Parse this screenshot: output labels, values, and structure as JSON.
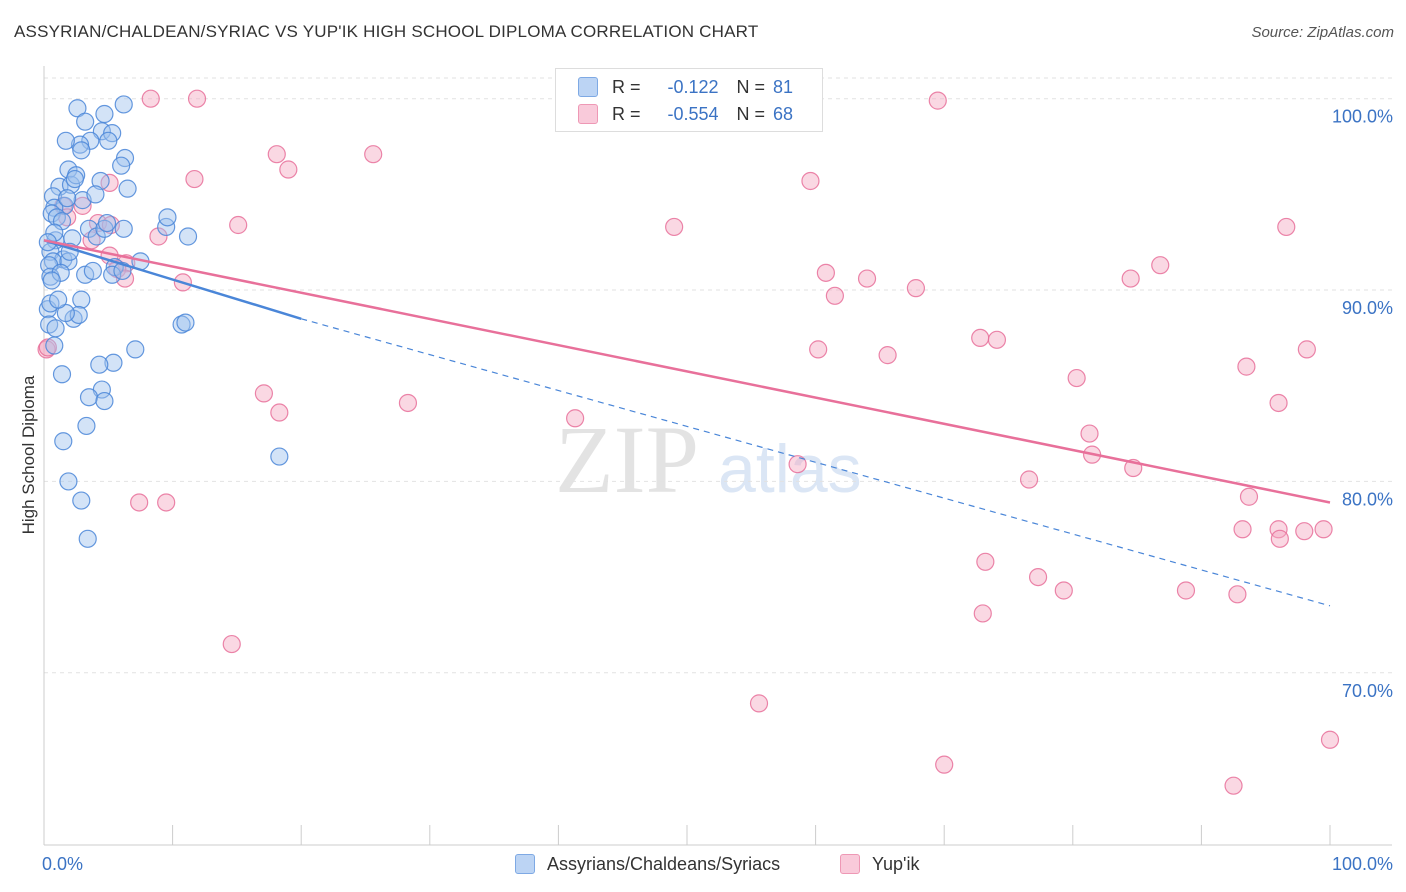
{
  "title": "ASSYRIAN/CHALDEAN/SYRIAC VS YUP'IK HIGH SCHOOL DIPLOMA CORRELATION CHART",
  "source": "Source: ZipAtlas.com",
  "watermark": {
    "zip": "ZIP",
    "atlas": "atlas"
  },
  "legend": {
    "rows": [
      {
        "r_label": "R =",
        "r_value": "-0.122",
        "n_label": "N =",
        "n_value": "81",
        "color": "#9dc0ee"
      },
      {
        "r_label": "R =",
        "r_value": "-0.554",
        "n_label": "N =",
        "n_value": "68",
        "color": "#f4a9c2"
      }
    ]
  },
  "bottom_legend": [
    {
      "label": "Assyrians/Chaldeans/Syriacs",
      "color": "#9dc0ee"
    },
    {
      "label": "Yup'ik",
      "color": "#f4a9c2"
    }
  ],
  "chart_data": {
    "type": "scatter",
    "title": "ASSYRIAN/CHALDEAN/SYRIAC VS YUP'IK HIGH SCHOOL DIPLOMA CORRELATION CHART",
    "xlabel": "",
    "ylabel": "High School Diploma",
    "xlim": [
      0,
      100
    ],
    "ylim": [
      61,
      101.5
    ],
    "x_tick_labels": [
      "0.0%",
      "100.0%"
    ],
    "y_ticks": [
      70,
      80,
      90,
      100
    ],
    "y_tick_labels": [
      "70.0%",
      "80.0%",
      "90.0%",
      "100.0%"
    ],
    "grid": true,
    "series": [
      {
        "name": "Assyrians/Chaldeans/Syriacs",
        "color": "#4a86d8",
        "fill": "#9dc0ee",
        "points": [
          [
            2.6,
            99.5
          ],
          [
            4.7,
            99.2
          ],
          [
            4.5,
            98.3
          ],
          [
            6.2,
            99.7
          ],
          [
            3.6,
            97.8
          ],
          [
            2.8,
            97.6
          ],
          [
            5.3,
            98.2
          ],
          [
            1.7,
            97.8
          ],
          [
            2.9,
            97.3
          ],
          [
            6.3,
            96.9
          ],
          [
            1.9,
            96.3
          ],
          [
            4.4,
            95.7
          ],
          [
            1.2,
            95.4
          ],
          [
            2.1,
            95.5
          ],
          [
            6.5,
            95.3
          ],
          [
            0.7,
            94.9
          ],
          [
            1.6,
            94.4
          ],
          [
            0.8,
            94.3
          ],
          [
            0.6,
            94.0
          ],
          [
            1.0,
            93.8
          ],
          [
            1.4,
            93.6
          ],
          [
            3.5,
            93.2
          ],
          [
            4.1,
            92.8
          ],
          [
            0.9,
            92.6
          ],
          [
            2.2,
            92.7
          ],
          [
            9.5,
            93.3
          ],
          [
            11.2,
            92.8
          ],
          [
            4.7,
            93.2
          ],
          [
            0.5,
            92.0
          ],
          [
            6.2,
            93.2
          ],
          [
            9.6,
            93.8
          ],
          [
            1.5,
            91.6
          ],
          [
            0.7,
            91.5
          ],
          [
            1.9,
            91.5
          ],
          [
            0.4,
            91.3
          ],
          [
            5.5,
            91.2
          ],
          [
            3.2,
            90.8
          ],
          [
            0.5,
            90.7
          ],
          [
            1.3,
            90.9
          ],
          [
            5.3,
            90.8
          ],
          [
            6.1,
            91.0
          ],
          [
            2.9,
            89.5
          ],
          [
            0.3,
            89.0
          ],
          [
            0.5,
            89.3
          ],
          [
            2.3,
            88.5
          ],
          [
            0.4,
            88.2
          ],
          [
            0.9,
            88.0
          ],
          [
            2.7,
            88.7
          ],
          [
            1.7,
            88.8
          ],
          [
            10.7,
            88.2
          ],
          [
            11.0,
            88.3
          ],
          [
            7.1,
            86.9
          ],
          [
            5.4,
            86.2
          ],
          [
            4.3,
            86.1
          ],
          [
            0.8,
            87.1
          ],
          [
            1.4,
            85.6
          ],
          [
            4.5,
            84.8
          ],
          [
            3.5,
            84.4
          ],
          [
            4.7,
            84.2
          ],
          [
            3.3,
            82.9
          ],
          [
            1.5,
            82.1
          ],
          [
            18.3,
            81.3
          ],
          [
            1.9,
            80.0
          ],
          [
            2.9,
            79.0
          ],
          [
            3.4,
            77.0
          ],
          [
            0.8,
            93.0
          ],
          [
            3.0,
            94.7
          ],
          [
            4.0,
            95.0
          ],
          [
            2.5,
            96.0
          ],
          [
            5.0,
            97.8
          ],
          [
            0.6,
            90.5
          ],
          [
            1.1,
            89.5
          ],
          [
            2.0,
            92.0
          ],
          [
            3.8,
            91.0
          ],
          [
            4.9,
            93.5
          ],
          [
            0.3,
            92.5
          ],
          [
            1.8,
            94.8
          ],
          [
            2.4,
            95.8
          ],
          [
            6.0,
            96.5
          ],
          [
            3.2,
            98.8
          ],
          [
            7.5,
            91.5
          ]
        ]
      },
      {
        "name": "Yup'ik",
        "color": "#e8709a",
        "fill": "#f4a9c2",
        "points": [
          [
            8.3,
            100.0
          ],
          [
            11.9,
            100.0
          ],
          [
            69.5,
            99.9
          ],
          [
            18.1,
            97.1
          ],
          [
            25.6,
            97.1
          ],
          [
            19.0,
            96.3
          ],
          [
            11.7,
            95.8
          ],
          [
            5.1,
            95.6
          ],
          [
            59.6,
            95.7
          ],
          [
            3.0,
            94.4
          ],
          [
            1.5,
            94.4
          ],
          [
            1.8,
            93.8
          ],
          [
            4.2,
            93.5
          ],
          [
            5.2,
            93.4
          ],
          [
            15.1,
            93.4
          ],
          [
            49.0,
            93.3
          ],
          [
            96.6,
            93.3
          ],
          [
            8.9,
            92.8
          ],
          [
            3.7,
            92.6
          ],
          [
            5.1,
            91.8
          ],
          [
            6.4,
            91.4
          ],
          [
            86.8,
            91.3
          ],
          [
            60.8,
            90.9
          ],
          [
            64.0,
            90.6
          ],
          [
            84.5,
            90.6
          ],
          [
            10.8,
            90.4
          ],
          [
            67.8,
            90.1
          ],
          [
            61.5,
            89.7
          ],
          [
            5.7,
            91.1
          ],
          [
            6.3,
            90.6
          ],
          [
            72.8,
            87.5
          ],
          [
            74.1,
            87.4
          ],
          [
            98.2,
            86.9
          ],
          [
            60.2,
            86.9
          ],
          [
            65.6,
            86.6
          ],
          [
            93.5,
            86.0
          ],
          [
            0.2,
            86.9
          ],
          [
            80.3,
            85.4
          ],
          [
            17.1,
            84.6
          ],
          [
            96.0,
            84.1
          ],
          [
            28.3,
            84.1
          ],
          [
            18.3,
            83.6
          ],
          [
            41.3,
            83.3
          ],
          [
            81.3,
            82.5
          ],
          [
            81.5,
            81.4
          ],
          [
            84.7,
            80.7
          ],
          [
            58.6,
            80.9
          ],
          [
            76.6,
            80.1
          ],
          [
            93.7,
            79.2
          ],
          [
            7.4,
            78.9
          ],
          [
            9.5,
            78.9
          ],
          [
            93.2,
            77.5
          ],
          [
            96.0,
            77.5
          ],
          [
            96.1,
            77.0
          ],
          [
            98.0,
            77.4
          ],
          [
            99.5,
            77.5
          ],
          [
            73.2,
            75.8
          ],
          [
            77.3,
            75.0
          ],
          [
            79.3,
            74.3
          ],
          [
            88.8,
            74.3
          ],
          [
            92.8,
            74.1
          ],
          [
            73.0,
            73.1
          ],
          [
            14.6,
            71.5
          ],
          [
            55.6,
            68.4
          ],
          [
            70.0,
            65.2
          ],
          [
            92.5,
            64.1
          ],
          [
            100.0,
            66.5
          ],
          [
            0.3,
            87.0
          ]
        ]
      }
    ],
    "trend_lines": [
      {
        "series": "Assyrians/Chaldeans/Syriacs",
        "solid": {
          "x": [
            0,
            20
          ],
          "y": [
            92.6,
            88.5
          ]
        },
        "dashed": {
          "x": [
            20,
            100
          ],
          "y": [
            88.5,
            73.5
          ]
        }
      },
      {
        "series": "Yup'ik",
        "solid": {
          "x": [
            0,
            100
          ],
          "y": [
            92.6,
            78.9
          ]
        }
      }
    ]
  }
}
